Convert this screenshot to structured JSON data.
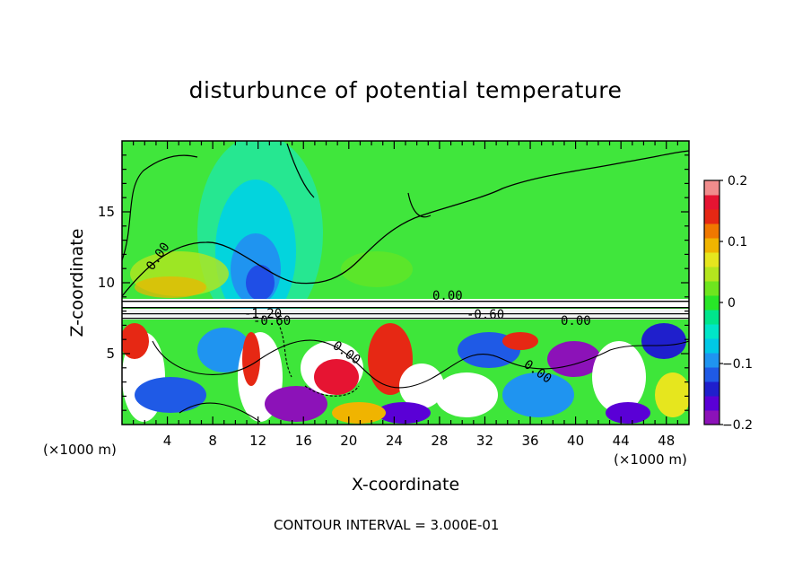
{
  "chart_data": {
    "type": "heatmap",
    "title": "disturbunce of potential temperature",
    "xlabel": "X-coordinate",
    "ylabel": "Z-coordinate",
    "x_unit_label": "(×1000 m)",
    "x_unit_label_right": "(×1000 m)",
    "xlim": [
      0,
      50
    ],
    "ylim": [
      0,
      20
    ],
    "x_ticks": [
      4,
      8,
      12,
      16,
      20,
      24,
      28,
      32,
      36,
      40,
      44,
      48
    ],
    "y_ticks": [
      5,
      10,
      15
    ],
    "contour_interval_text": "CONTOUR INTERVAL = 3.000E-01",
    "contour_labels": [
      "0.00",
      "0.00",
      "-1.20",
      "-0.60",
      "0.00",
      "0.00",
      "-0.60",
      "0.00"
    ],
    "colorbar": {
      "min": -0.2,
      "max": 0.2,
      "tick_labels": [
        "0.2",
        "0.1",
        "0",
        "−0.1",
        "−0.2"
      ],
      "tick_values": [
        0.2,
        0.1,
        0,
        -0.1,
        -0.2
      ],
      "colors": [
        "#8c12b8",
        "#5a00d6",
        "#1f1fcc",
        "#1f5ae6",
        "#1f94f0",
        "#00c8e6",
        "#00e6c8",
        "#00e68c",
        "#28e628",
        "#6ee61e",
        "#b4e61e",
        "#e6e61e",
        "#f0b400",
        "#f07800",
        "#e62814",
        "#e61432",
        "#f08c8c"
      ]
    }
  }
}
